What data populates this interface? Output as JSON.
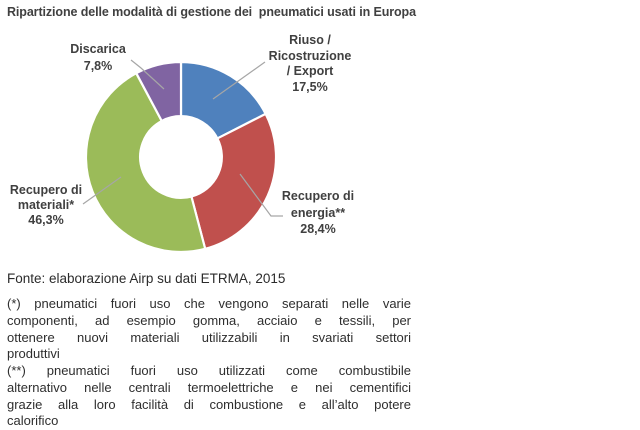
{
  "title": "Ripartizione delle modalità di gestione dei  pneumatici usati in Europa",
  "chart": {
    "labels": {
      "discarica": {
        "name": "Discarica",
        "value": "7,8%"
      },
      "riuso": {
        "l1": "Riuso /",
        "l2": "Ricostruzione",
        "l3": "/ Export",
        "value": "17,5%"
      },
      "energia": {
        "l1": "Recupero di",
        "l2": "energia**",
        "value": "28,4%"
      },
      "materiali": {
        "l1": "Recupero di",
        "l2": "materiali*",
        "value": "46,3%"
      }
    }
  },
  "source": "Fonte: elaborazione Airp su dati ETRMA, 2015",
  "footnotes": [
    {
      "lines": [
        "(*) pneumatici fuori uso che vengono separati nelle varie",
        "componenti, ad esempio gomma, acciaio e tessili, per",
        "ottenere nuovi materiali utilizzabili in svariati settori",
        "produttivi"
      ]
    },
    {
      "lines": [
        "(**) pneumatici fuori uso utilizzati come combustibile",
        "alternativo nelle centrali termoelettriche e nei cementifici",
        "grazie alla loro facilità di combustione e all’alto potere",
        "calorifico"
      ]
    }
  ],
  "chart_data": {
    "type": "pie",
    "donut": true,
    "title": "Ripartizione delle modalità di gestione dei pneumatici usati in Europa",
    "categories": [
      "Riuso / Ricostruzione / Export",
      "Recupero di energia**",
      "Recupero di materiali*",
      "Discarica"
    ],
    "values": [
      17.5,
      28.4,
      46.3,
      7.8
    ],
    "unit": "%",
    "colors": [
      "#4F81BD",
      "#C0504D",
      "#9BBB59",
      "#8064A2"
    ],
    "start_angle_deg": 0,
    "direction": "clockwise",
    "inner_radius_ratio": 0.43,
    "slice_border_color": "#FFFFFF",
    "leader_line_color": "#A6A6A6",
    "legend": "none",
    "label_color": "#404040"
  }
}
